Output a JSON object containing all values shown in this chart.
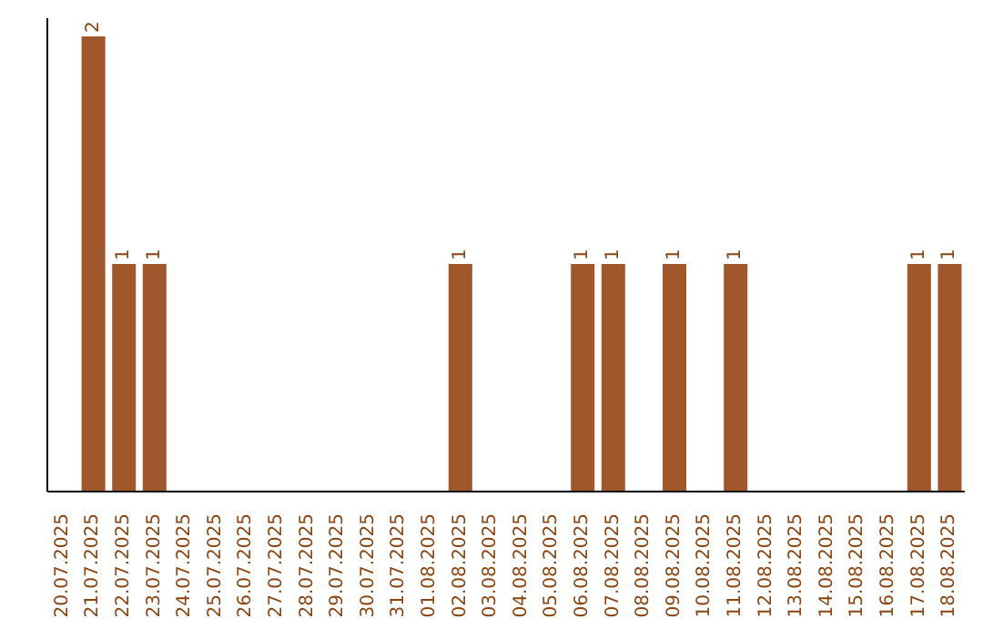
{
  "chart_data": {
    "type": "bar",
    "categories": [
      "20.07.2025",
      "21.07.2025",
      "22.07.2025",
      "23.07.2025",
      "24.07.2025",
      "25.07.2025",
      "26.07.2025",
      "27.07.2025",
      "28.07.2025",
      "29.07.2025",
      "30.07.2025",
      "31.07.2025",
      "01.08.2025",
      "02.08.2025",
      "03.08.2025",
      "04.08.2025",
      "05.08.2025",
      "06.08.2025",
      "07.08.2025",
      "08.08.2025",
      "09.08.2025",
      "10.08.2025",
      "11.08.2025",
      "12.08.2025",
      "13.08.2025",
      "14.08.2025",
      "15.08.2025",
      "16.08.2025",
      "17.08.2025",
      "18.08.2025"
    ],
    "values": [
      0,
      2,
      1,
      1,
      0,
      0,
      0,
      0,
      0,
      0,
      0,
      0,
      0,
      1,
      0,
      0,
      0,
      1,
      1,
      0,
      1,
      0,
      1,
      0,
      0,
      0,
      0,
      0,
      1,
      1
    ],
    "value_labels": [
      null,
      "2",
      "1",
      "1",
      null,
      null,
      null,
      null,
      null,
      null,
      null,
      null,
      null,
      "1",
      null,
      null,
      null,
      "1",
      "1",
      null,
      "1",
      null,
      "1",
      null,
      null,
      null,
      null,
      null,
      "1",
      "1"
    ],
    "color": "#a0572b",
    "grid": false
  }
}
